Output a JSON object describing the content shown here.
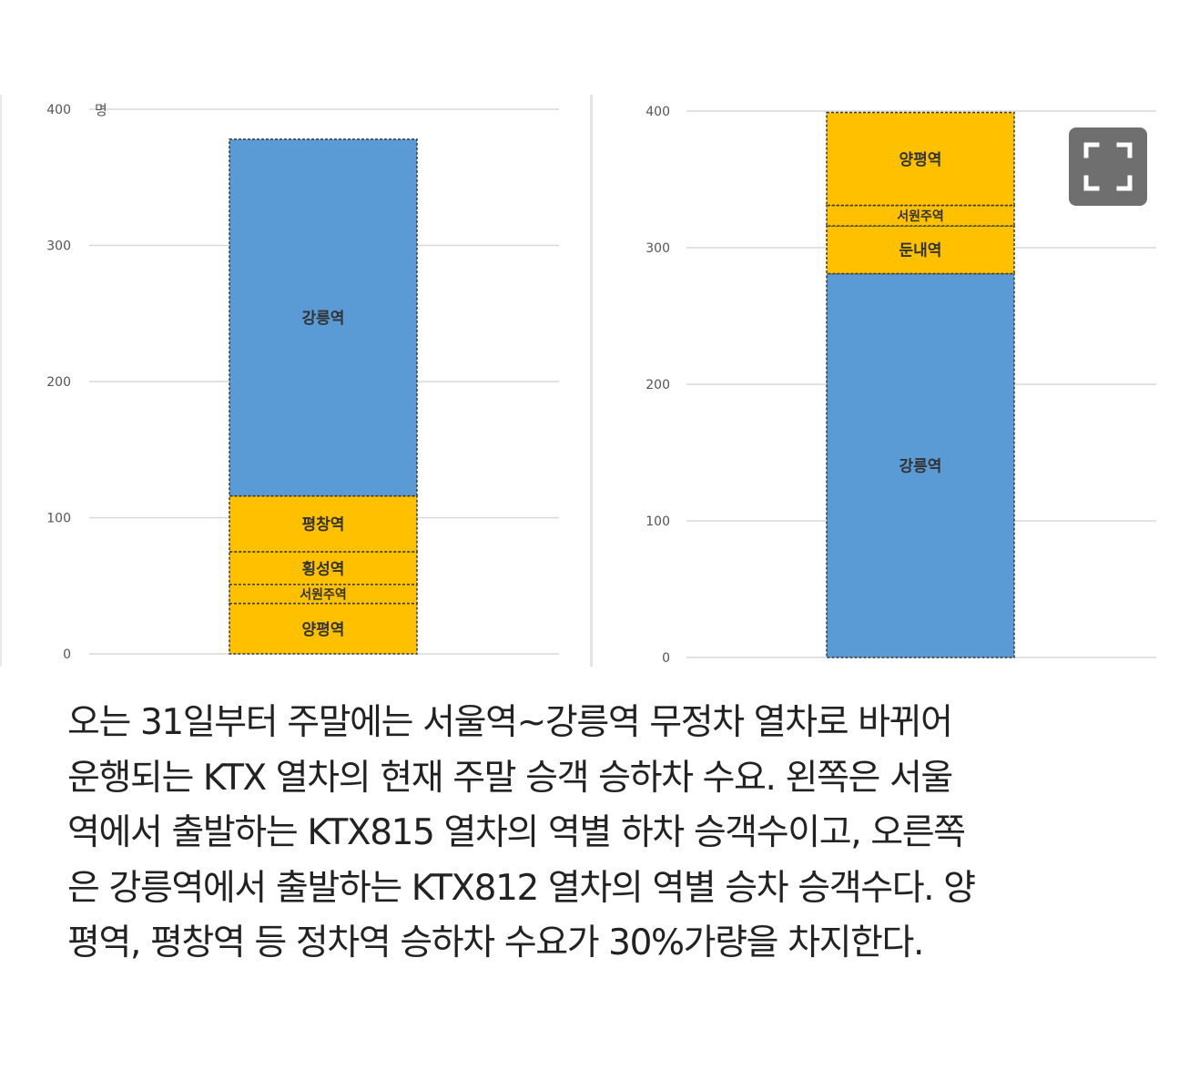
{
  "colors": {
    "accent_blue": "#5b9bd5",
    "accent_yellow": "#ffc000",
    "grid": "#d9d9d9",
    "text": "#222222",
    "expand_button": "#6f6f6f"
  },
  "expand_button": {
    "icon": "fullscreen-icon"
  },
  "chart_data": [
    {
      "type": "bar",
      "stacked": true,
      "title": "",
      "xlabel": "",
      "ylabel": "명",
      "ylim": [
        0,
        400
      ],
      "yticks": [
        "0",
        "100",
        "200",
        "300",
        "400"
      ],
      "grid": true,
      "legend": "none",
      "series": [
        {
          "label": "양평역",
          "value": 37,
          "color": "#ffc000"
        },
        {
          "label": "서원주역",
          "value": 14,
          "color": "#ffc000"
        },
        {
          "label": "횡성역",
          "value": 24,
          "color": "#ffc000"
        },
        {
          "label": "평창역",
          "value": 41,
          "color": "#ffc000"
        },
        {
          "label": "강릉역",
          "value": 262,
          "color": "#5b9bd5"
        }
      ]
    },
    {
      "type": "bar",
      "stacked": true,
      "title": "",
      "xlabel": "",
      "ylabel": "",
      "ylim": [
        0,
        400
      ],
      "yticks": [
        "0",
        "100",
        "200",
        "300",
        "400"
      ],
      "grid": true,
      "legend": "none",
      "series": [
        {
          "label": "강릉역",
          "value": 281,
          "color": "#5b9bd5"
        },
        {
          "label": "둔내역",
          "value": 35,
          "color": "#ffc000"
        },
        {
          "label": "서원주역",
          "value": 15,
          "color": "#ffc000"
        },
        {
          "label": "양평역",
          "value": 68,
          "color": "#ffc000"
        }
      ]
    }
  ],
  "caption": {
    "lines": [
      "오는 31일부터 주말에는 서울역~강릉역 무정차 열차로 바뀌어",
      "운행되는 KTX 열차의 현재 주말 승객 승하차 수요. 왼쪽은 서울",
      "역에서 출발하는 KTX815 열차의 역별 하차 승객수이고, 오른쪽",
      "은 강릉역에서 출발하는 KTX812 열차의 역별 승차 승객수다. 양",
      "평역, 평창역 등 정차역 승하차 수요가 30%가량을 차지한다."
    ]
  }
}
